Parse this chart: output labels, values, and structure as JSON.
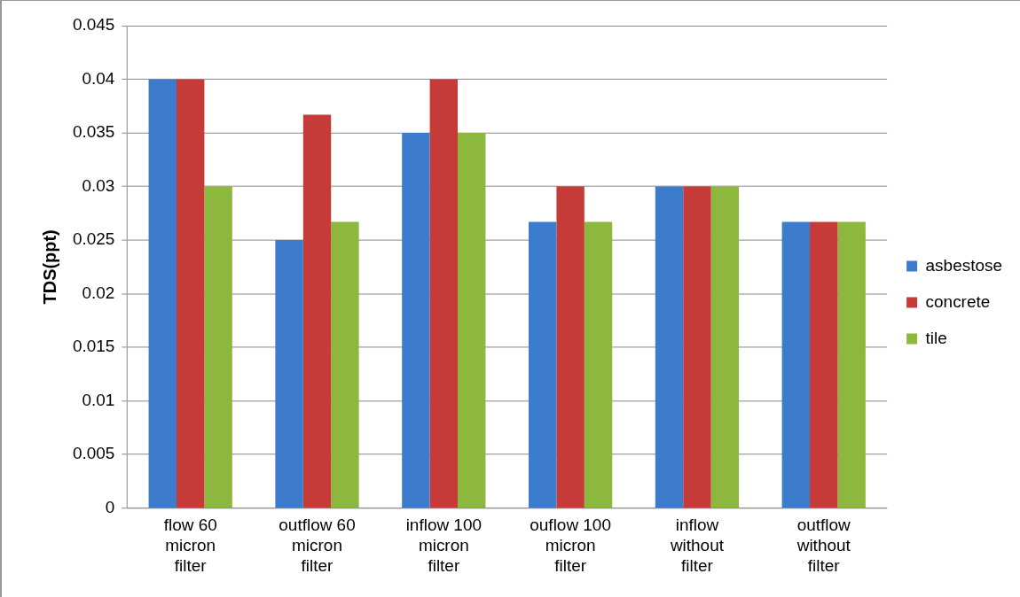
{
  "chart_data": {
    "type": "bar",
    "ylabel": "TDS(ppt)",
    "categories": [
      "flow 60 micron filter",
      "outflow 60 micron filter",
      "inflow 100 micron filter",
      "ouflow 100 micron filter",
      "inflow without filter",
      "outflow without filter"
    ],
    "series": [
      {
        "name": "asbestose",
        "color": "#3d7ccc",
        "values": [
          0.04,
          0.025,
          0.035,
          0.0267,
          0.03,
          0.0267
        ]
      },
      {
        "name": "concrete",
        "color": "#c63b38",
        "values": [
          0.04,
          0.0367,
          0.04,
          0.03,
          0.03,
          0.0267
        ]
      },
      {
        "name": "tile",
        "color": "#8cb83e",
        "values": [
          0.03,
          0.0267,
          0.035,
          0.0267,
          0.03,
          0.0267
        ]
      }
    ],
    "ylim": [
      0,
      0.045
    ],
    "yticks": [
      0,
      0.005,
      0.01,
      0.015,
      0.02,
      0.025,
      0.03,
      0.035,
      0.04,
      0.045
    ],
    "grid": "y",
    "legend": "right"
  }
}
